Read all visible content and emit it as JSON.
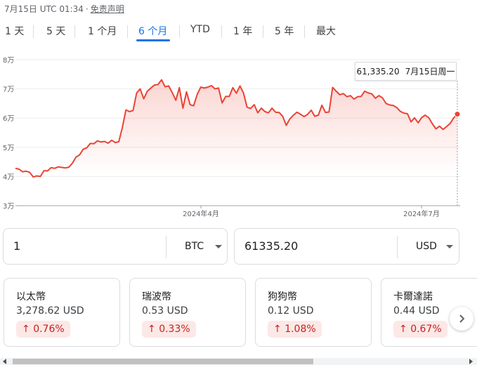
{
  "header": {
    "time": "7月15日 UTC 01:34",
    "separator": "·",
    "disclaimer": "免责声明"
  },
  "tabs": [
    {
      "label": "1 天"
    },
    {
      "label": "5 天"
    },
    {
      "label": "1 个月"
    },
    {
      "label": "6 个月",
      "active": true
    },
    {
      "label": "YTD"
    },
    {
      "label": "1 年"
    },
    {
      "label": "5 年"
    },
    {
      "label": "最大"
    }
  ],
  "tooltip": {
    "value": "61,335.20",
    "date": "7月15日周一"
  },
  "chart_data": {
    "type": "area",
    "yticks": [
      "8万",
      "7万",
      "6万",
      "5万",
      "4万",
      "3万"
    ],
    "xticks": [
      "2024年4月",
      "2024年7月"
    ],
    "ylim": [
      30000,
      80000
    ],
    "color": "#ea4335",
    "values": [
      42800,
      42500,
      41600,
      41800,
      41400,
      39800,
      40200,
      40000,
      42000,
      41900,
      43000,
      42800,
      43300,
      43100,
      42900,
      43200,
      44600,
      46600,
      47400,
      49300,
      49800,
      51300,
      51200,
      52200,
      51800,
      52000,
      51400,
      52400,
      51600,
      51900,
      56800,
      62800,
      62200,
      62600,
      68600,
      70000,
      66600,
      69200,
      70300,
      71300,
      71500,
      73100,
      70700,
      71000,
      68700,
      66100,
      70400,
      63400,
      69000,
      64600,
      64200,
      68100,
      70600,
      70300,
      70600,
      71100,
      70000,
      70300,
      65200,
      67400,
      67400,
      70400,
      68500,
      71000,
      68600,
      63700,
      63300,
      64600,
      61800,
      63400,
      62200,
      61800,
      63400,
      62000,
      61900,
      60600,
      57500,
      59700,
      61000,
      62000,
      61300,
      60500,
      61300,
      62700,
      60600,
      61000,
      64400,
      61900,
      62100,
      70500,
      69200,
      68000,
      68400,
      67300,
      67700,
      66500,
      67300,
      67400,
      69200,
      68600,
      68300,
      66800,
      67700,
      66900,
      65000,
      64500,
      64300,
      63600,
      62300,
      61700,
      61500,
      58700,
      60100,
      58400,
      60200,
      61000,
      60100,
      58000,
      56300,
      57200,
      56100,
      57100,
      58200,
      60100
    ],
    "last_value": 61335.2
  },
  "converter": {
    "left": {
      "value": "1",
      "currency": "BTC"
    },
    "right": {
      "value": "61335.20",
      "currency": "USD"
    }
  },
  "cards": [
    {
      "name": "以太幣",
      "price": "3,278.62 USD",
      "change": "0.76%"
    },
    {
      "name": "瑞波幣",
      "price": "0.53 USD",
      "change": "0.33%"
    },
    {
      "name": "狗狗幣",
      "price": "0.12 USD",
      "change": "1.08%"
    },
    {
      "name": "卡爾達諾",
      "price": "0.44 USD",
      "change": "0.67%"
    }
  ],
  "icons": {
    "up": "up-arrow-icon",
    "next": "chevron-right-icon",
    "dropdown": "caret-down-icon"
  }
}
